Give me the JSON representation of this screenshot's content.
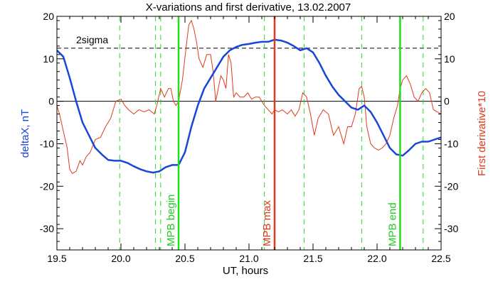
{
  "chart_data": {
    "type": "line",
    "title": "X-variations and first derivative, 13.02.2007",
    "xlabel": "UT, hours",
    "ylabel_left": "deltaX, nT",
    "ylabel_right": "First derivative*10",
    "xlim": [
      19.5,
      22.5
    ],
    "ylim": [
      -35,
      20
    ],
    "x_ticks": [
      19.5,
      20.0,
      20.5,
      21.0,
      21.5,
      22.0,
      22.5
    ],
    "x_tick_labels": [
      "19.5",
      "20.0",
      "20.5",
      "21.0",
      "21.5",
      "22.0",
      "22.5"
    ],
    "y_ticks": [
      20,
      10,
      0,
      -10,
      -20,
      -30
    ],
    "y_tick_labels": [
      "20",
      "10",
      "0",
      "-10",
      "-20",
      "-30"
    ],
    "grid": false,
    "colors": {
      "deltaX": "#1846d8",
      "derivative": "#e03a1c",
      "vline_green": "#22dd22",
      "vline_red": "#e03a1c",
      "text_green": "#22cc22",
      "axis": "#000000"
    },
    "sigma_level": 12.5,
    "sigma_label": "2sigma",
    "zero_line": 0,
    "dashed_green_lines": [
      19.99,
      20.27,
      20.31,
      21.12,
      21.43,
      21.88,
      22.36
    ],
    "solid_lines": [
      {
        "x": 20.45,
        "label": "MPB begin",
        "color": "#22dd22"
      },
      {
        "x": 21.2,
        "label": "MPB max",
        "color": "#e03a1c"
      },
      {
        "x": 22.18,
        "label": "MPB end",
        "color": "#22dd22"
      }
    ],
    "series": [
      {
        "name": "deltaX, nT",
        "color": "#1846d8",
        "x": [
          19.5,
          19.55,
          19.6,
          19.65,
          19.7,
          19.75,
          19.8,
          19.85,
          19.9,
          19.95,
          20.0,
          20.05,
          20.1,
          20.15,
          20.2,
          20.25,
          20.3,
          20.35,
          20.4,
          20.45,
          20.5,
          20.55,
          20.6,
          20.65,
          20.7,
          20.75,
          20.8,
          20.85,
          20.9,
          20.95,
          21.0,
          21.05,
          21.1,
          21.15,
          21.2,
          21.25,
          21.3,
          21.35,
          21.4,
          21.45,
          21.5,
          21.55,
          21.6,
          21.65,
          21.7,
          21.75,
          21.8,
          21.85,
          21.9,
          21.95,
          22.0,
          22.05,
          22.1,
          22.15,
          22.2,
          22.25,
          22.3,
          22.35,
          22.4,
          22.45,
          22.5
        ],
        "y": [
          12.0,
          10.5,
          5.5,
          0.0,
          -5.0,
          -8.0,
          -11.0,
          -12.5,
          -13.8,
          -14.0,
          -14.0,
          -14.5,
          -15.3,
          -16.0,
          -16.5,
          -16.8,
          -16.5,
          -15.5,
          -15.0,
          -15.0,
          -12.0,
          -6.0,
          -1.0,
          3.0,
          5.5,
          8.0,
          10.5,
          12.0,
          12.8,
          13.3,
          13.5,
          13.8,
          14.0,
          14.0,
          14.5,
          14.3,
          13.8,
          13.0,
          12.0,
          12.5,
          11.5,
          9.0,
          6.0,
          3.5,
          1.5,
          0.0,
          -1.5,
          -2.0,
          -1.0,
          -2.5,
          -5.0,
          -8.0,
          -11.0,
          -12.5,
          -12.8,
          -11.5,
          -10.0,
          -9.5,
          -9.5,
          -9.0,
          -8.5
        ]
      },
      {
        "name": "First derivative*10",
        "color": "#e03a1c",
        "x": [
          19.5,
          19.52,
          19.55,
          19.58,
          19.6,
          19.62,
          19.65,
          19.68,
          19.7,
          19.73,
          19.76,
          19.8,
          19.84,
          19.88,
          19.92,
          19.96,
          20.0,
          20.03,
          20.06,
          20.1,
          20.14,
          20.18,
          20.22,
          20.26,
          20.28,
          20.31,
          20.34,
          20.37,
          20.39,
          20.41,
          20.43,
          20.45,
          20.48,
          20.51,
          20.53,
          20.55,
          20.57,
          20.59,
          20.61,
          20.64,
          20.67,
          20.7,
          20.72,
          20.74,
          20.76,
          20.78,
          20.8,
          20.82,
          20.84,
          20.86,
          20.88,
          20.9,
          20.93,
          20.96,
          20.99,
          21.02,
          21.05,
          21.08,
          21.1,
          21.12,
          21.15,
          21.18,
          21.2,
          21.23,
          21.26,
          21.3,
          21.33,
          21.36,
          21.39,
          21.42,
          21.45,
          21.48,
          21.51,
          21.54,
          21.58,
          21.62,
          21.66,
          21.7,
          21.74,
          21.77,
          21.8,
          21.83,
          21.86,
          21.88,
          21.9,
          21.92,
          21.95,
          21.98,
          22.01,
          22.04,
          22.07,
          22.1,
          22.13,
          22.16,
          22.18,
          22.2,
          22.23,
          22.26,
          22.29,
          22.32,
          22.35,
          22.38,
          22.41,
          22.44,
          22.47,
          22.5
        ],
        "y": [
          -1.0,
          -3.0,
          -7.0,
          -11.0,
          -16.0,
          -17.0,
          -16.5,
          -14.0,
          -15.0,
          -13.0,
          -12.0,
          -9.0,
          -8.5,
          -6.0,
          -4.0,
          0.0,
          0.5,
          -1.0,
          -2.0,
          -3.0,
          -2.0,
          -2.5,
          -2.0,
          -3.0,
          -1.0,
          3.0,
          1.0,
          3.0,
          3.0,
          0.0,
          -1.0,
          0.0,
          5.0,
          13.0,
          18.0,
          19.0,
          17.0,
          14.0,
          10.0,
          8.0,
          11.0,
          11.0,
          7.0,
          0.0,
          3.0,
          6.0,
          5.0,
          3.0,
          11.0,
          9.0,
          1.0,
          2.0,
          1.0,
          1.0,
          2.0,
          0.5,
          1.0,
          1.0,
          0.0,
          -1.0,
          -2.0,
          -3.0,
          -2.0,
          -2.5,
          -2.0,
          -3.0,
          -2.0,
          -3.5,
          -2.0,
          2.0,
          1.0,
          -3.0,
          -8.0,
          -4.0,
          -2.0,
          -3.0,
          -8.0,
          -6.0,
          -10.0,
          -6.0,
          -6.0,
          -3.0,
          3.0,
          3.5,
          1.0,
          -6.0,
          -10.0,
          -11.0,
          -11.5,
          -11.0,
          -10.0,
          -8.0,
          -4.0,
          -1.0,
          3.0,
          5.0,
          6.0,
          4.0,
          1.0,
          0.0,
          2.0,
          3.0,
          2.0,
          -2.0,
          -2.5,
          -3.0
        ]
      }
    ]
  }
}
